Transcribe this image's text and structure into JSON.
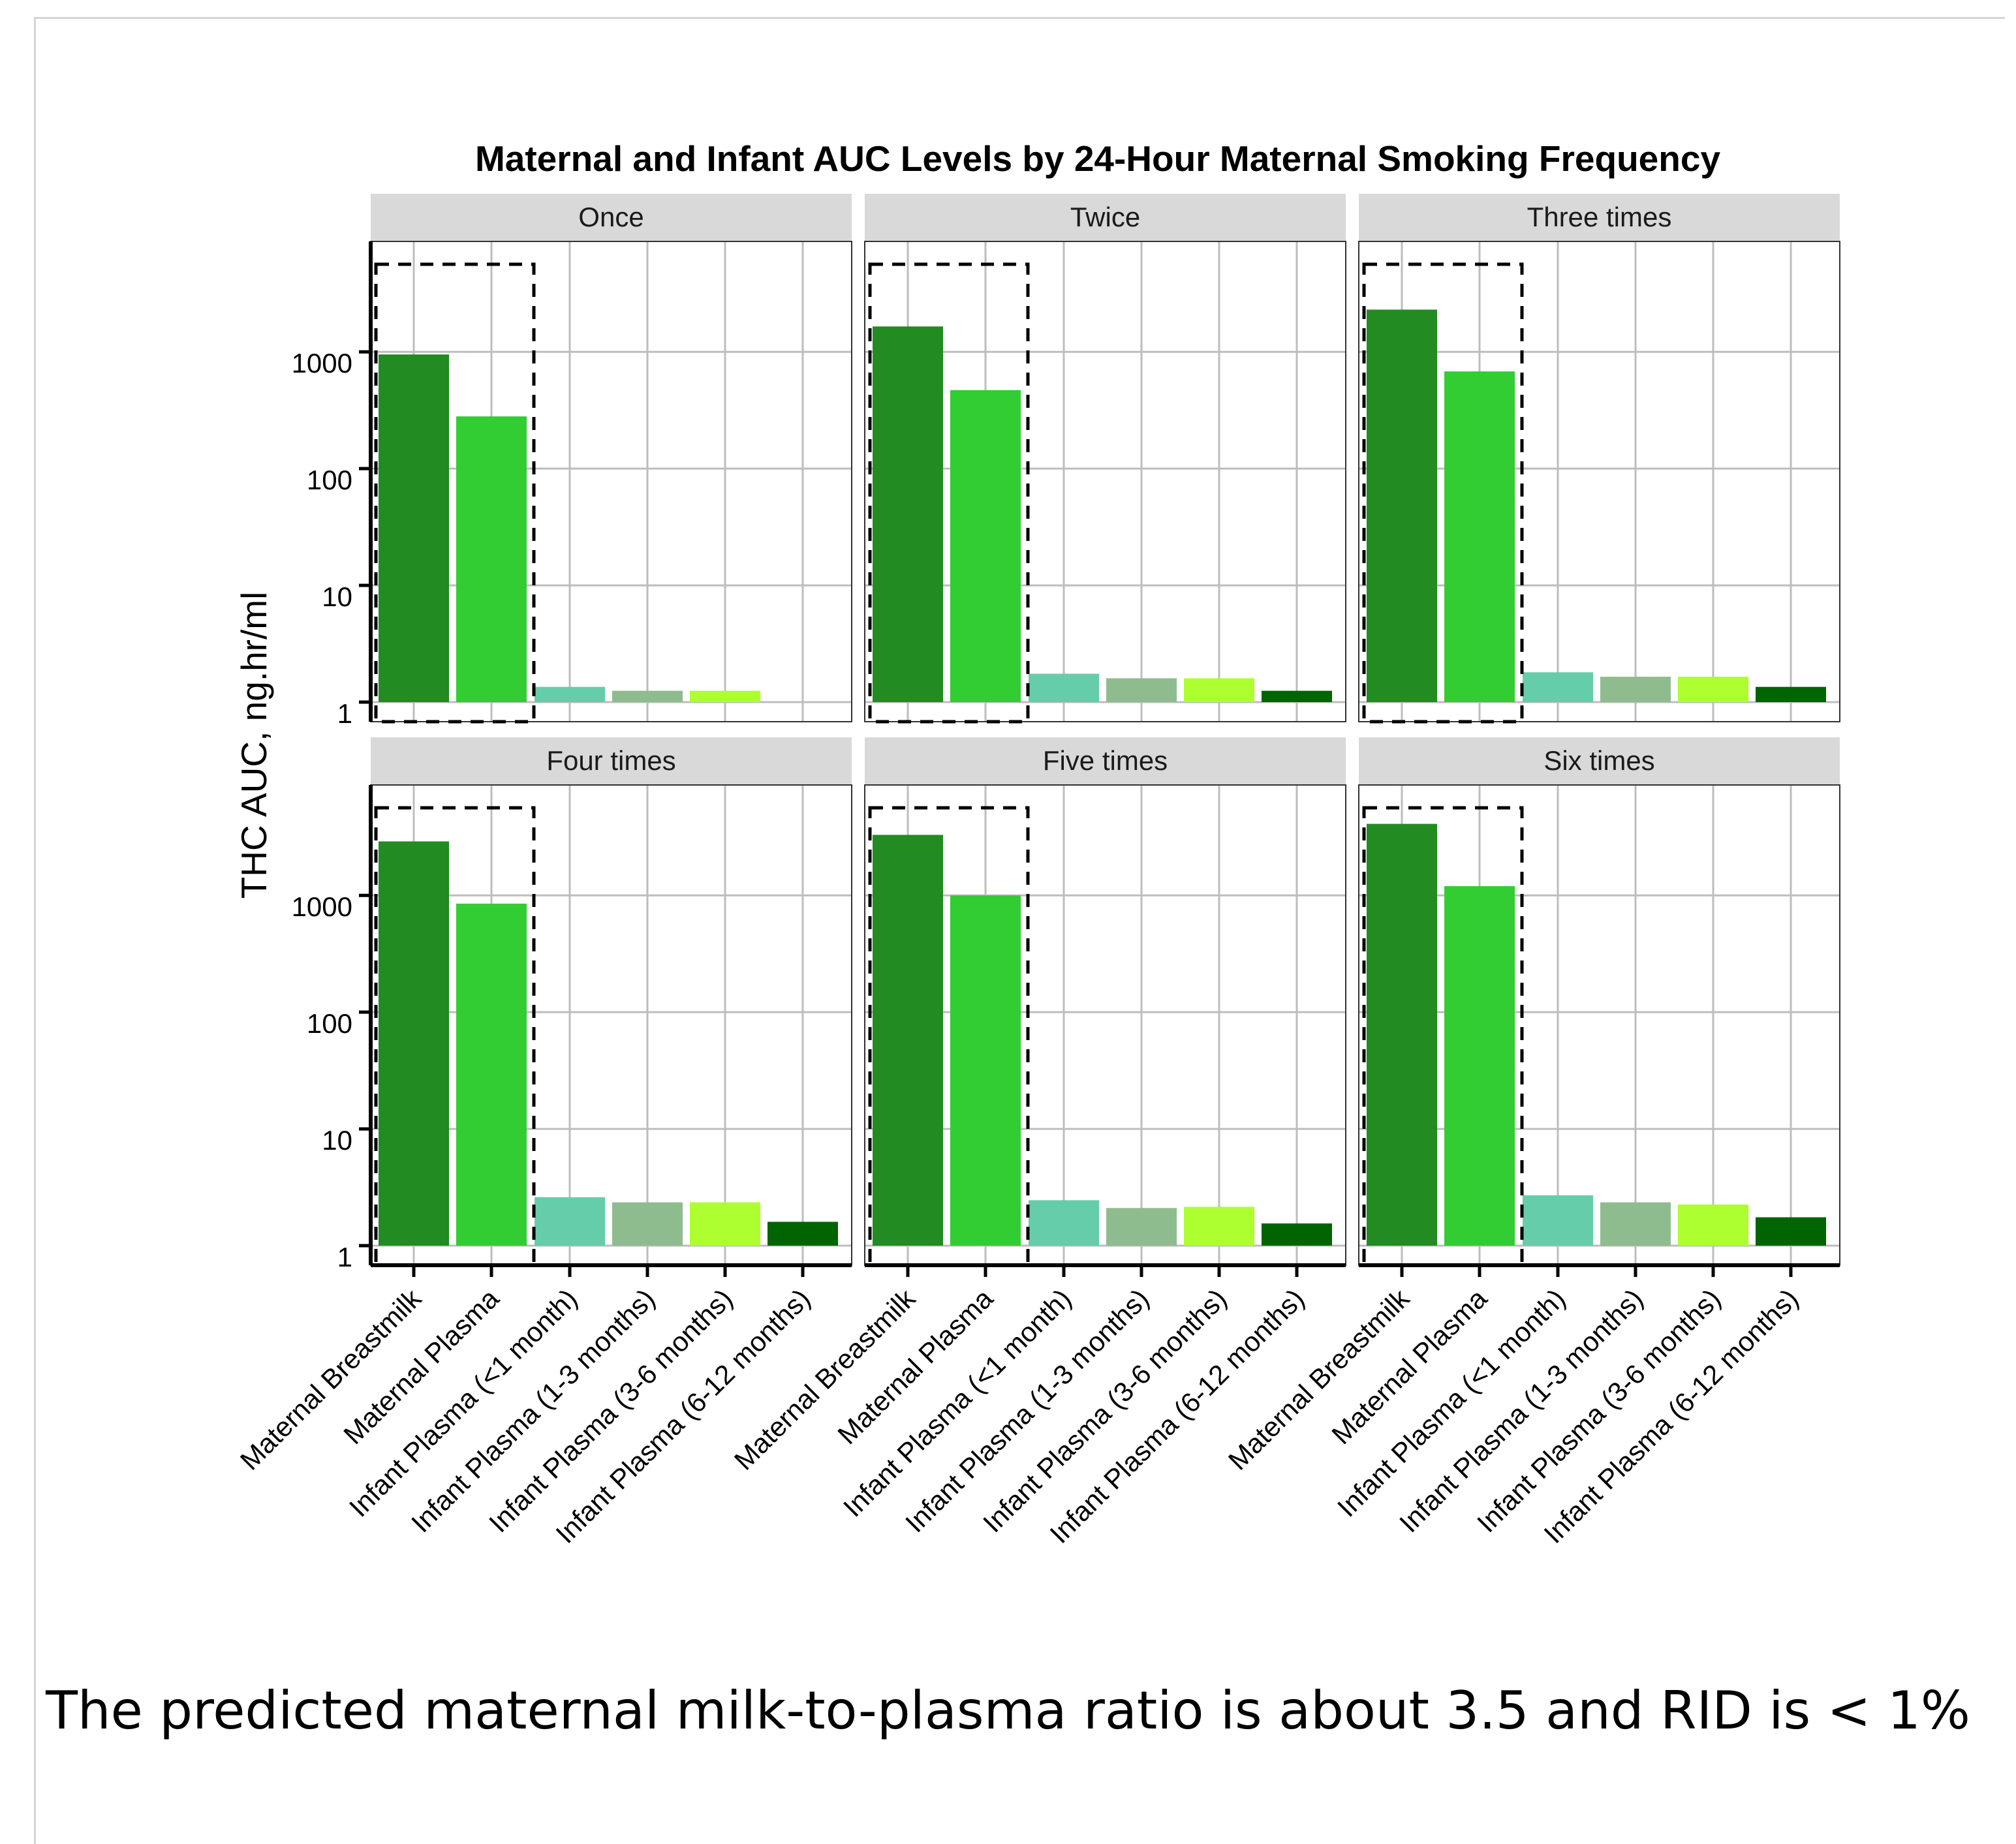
{
  "caption": "The predicted maternal milk-to-plasma ratio is about 3.5 and RID is < 1%",
  "chart_data": {
    "type": "bar",
    "title": "Maternal and Infant AUC Levels by 24-Hour Maternal Smoking Frequency",
    "ylabel": "THC AUC, ng.hr/ml",
    "yscale": "log10",
    "ylim": [
      1,
      6000
    ],
    "yticks": [
      "1",
      "10",
      "100",
      "1000"
    ],
    "grid": true,
    "categories": [
      "Maternal Breastmilk",
      "Maternal Plasma",
      "Infant Plasma (<1 month)",
      "Infant Plasma (1-3 months)",
      "Infant Plasma (3-6 months)",
      "Infant Plasma (6-12 months)"
    ],
    "category_colors": [
      "#228B22",
      "#32CD32",
      "#66CDAA",
      "#8FBC8F",
      "#ADFF2F",
      "#006400"
    ],
    "highlight_box": "Maternal Breastmilk and Maternal Plasma",
    "facets": [
      {
        "name": "Once",
        "values": [
          950,
          280,
          1.35,
          1.25,
          1.25,
          null
        ]
      },
      {
        "name": "Twice",
        "values": [
          1650,
          470,
          1.75,
          1.6,
          1.6,
          1.25
        ]
      },
      {
        "name": "Three times",
        "values": [
          2300,
          680,
          1.8,
          1.65,
          1.65,
          1.35
        ]
      },
      {
        "name": "Four times",
        "values": [
          2900,
          850,
          2.6,
          2.35,
          2.35,
          1.6
        ]
      },
      {
        "name": "Five times",
        "values": [
          3300,
          1000,
          2.45,
          2.1,
          2.15,
          1.55
        ]
      },
      {
        "name": "Six times",
        "values": [
          4100,
          1200,
          2.7,
          2.35,
          2.25,
          1.75
        ]
      }
    ]
  }
}
